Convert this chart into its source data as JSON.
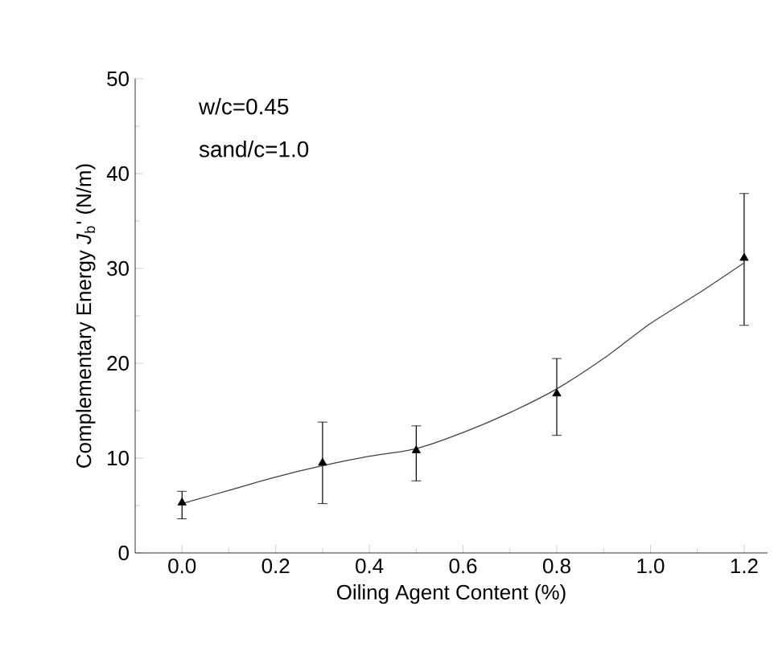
{
  "chart_data": {
    "type": "scatter",
    "xlabel": "Oiling Agent Content (%)",
    "ylabel": "Complementary Energy *J*$_{b}$' (N/m)",
    "annotations": [
      "w/c=0.45",
      "sand/c=1.0"
    ],
    "xlim": [
      -0.1,
      1.25
    ],
    "xticks": [
      {
        "value": 0,
        "label": "0.0"
      },
      0.2,
      0.4,
      0.6,
      0.8,
      {
        "value": 1,
        "label": "1.0"
      },
      1.2
    ],
    "ylim": [
      0,
      50
    ],
    "yticks": [
      0,
      10,
      20,
      30,
      40,
      50
    ],
    "grid": false,
    "series": [
      {
        "color": "#000000",
        "marker": "triangle",
        "x": [
          0.0,
          0.3,
          0.5,
          0.8,
          1.2
        ],
        "values": [
          5.3,
          9.5,
          10.8,
          16.8,
          31.1
        ],
        "errors": [
          [
            3.6,
            6.5
          ],
          [
            5.2,
            13.8
          ],
          [
            7.6,
            13.4
          ],
          [
            12.4,
            20.5
          ],
          [
            24.0,
            37.9
          ]
        ]
      },
      {
        "type": "line",
        "color": "#404040",
        "marker": "none",
        "x": [
          0.0,
          0.1,
          0.2,
          0.3,
          0.4,
          0.5,
          0.6,
          0.7,
          0.8,
          0.9,
          1.0,
          1.1,
          1.2
        ],
        "values": [
          5.2,
          6.6,
          8.0,
          9.2,
          10.2,
          11.0,
          12.7,
          14.8,
          17.3,
          20.5,
          24.2,
          27.3,
          30.6
        ]
      }
    ]
  }
}
